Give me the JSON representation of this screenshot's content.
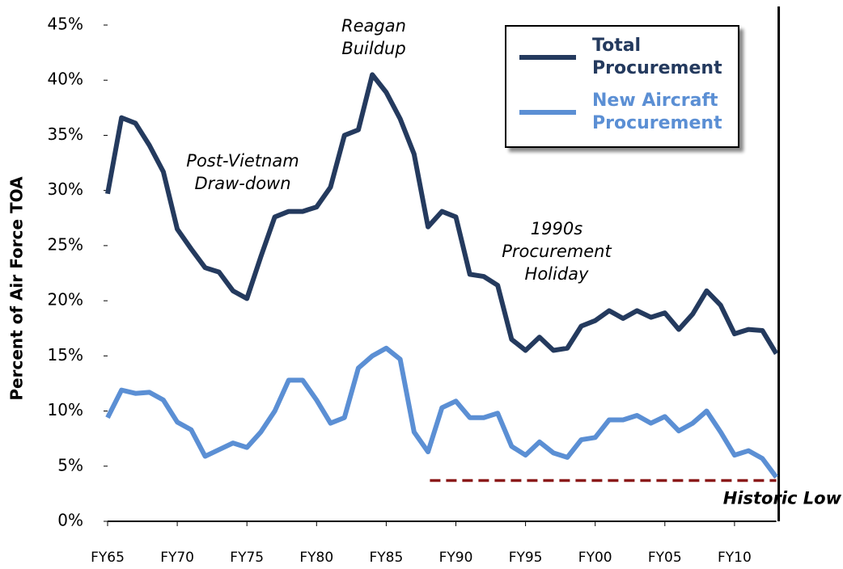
{
  "chart_data": {
    "type": "line",
    "y_label": "Percent of Air Force TOA",
    "categories": [
      "FY65",
      null,
      null,
      null,
      null,
      "FY70",
      null,
      null,
      null,
      null,
      "FY75",
      null,
      null,
      null,
      null,
      "FY80",
      null,
      null,
      null,
      null,
      "FY85",
      null,
      null,
      null,
      null,
      "FY90",
      null,
      null,
      null,
      null,
      "FY95",
      null,
      null,
      null,
      null,
      "FY00",
      null,
      null,
      null,
      null,
      "FY05",
      null,
      null,
      null,
      null,
      "FY10",
      null,
      null,
      null
    ],
    "series": [
      {
        "name": "Total Procurement",
        "color": "#243a5e",
        "values": [
          29.7,
          36.6,
          36.1,
          34.1,
          31.7,
          26.5,
          24.7,
          23.0,
          22.6,
          20.9,
          20.2,
          24.0,
          27.6,
          28.1,
          28.1,
          28.5,
          30.3,
          35.0,
          35.5,
          40.5,
          38.9,
          36.5,
          33.3,
          26.7,
          28.1,
          27.6,
          22.4,
          22.2,
          21.4,
          16.5,
          15.5,
          16.7,
          15.5,
          15.7,
          17.7,
          18.2,
          19.1,
          18.4,
          19.1,
          18.5,
          18.9,
          17.4,
          18.8,
          20.9,
          19.6,
          17.0,
          17.4,
          17.3,
          15.2
        ]
      },
      {
        "name": "New Aircraft Procurement",
        "color": "#5b8fd4",
        "values": [
          9.4,
          11.9,
          11.6,
          11.7,
          11.0,
          9.0,
          8.3,
          5.9,
          6.5,
          7.1,
          6.7,
          8.1,
          10.0,
          12.8,
          12.8,
          11.0,
          8.9,
          9.4,
          13.9,
          15.0,
          15.7,
          14.7,
          8.1,
          6.3,
          10.3,
          10.9,
          9.4,
          9.4,
          9.8,
          6.8,
          6.0,
          7.2,
          6.2,
          5.8,
          7.4,
          7.6,
          9.2,
          9.2,
          9.6,
          8.9,
          9.5,
          8.2,
          8.9,
          10.0,
          8.1,
          6.0,
          6.4,
          5.7,
          4.0
        ]
      }
    ],
    "ylim": [
      0,
      45
    ],
    "yticks": [
      {
        "value": 0,
        "label": "0%"
      },
      {
        "value": 5,
        "label": "5%"
      },
      {
        "value": 10,
        "label": "10%"
      },
      {
        "value": 15,
        "label": "15%"
      },
      {
        "value": 20,
        "label": "20%"
      },
      {
        "value": 25,
        "label": "25%"
      },
      {
        "value": 30,
        "label": "30%"
      },
      {
        "value": 35,
        "label": "35%"
      },
      {
        "value": 40,
        "label": "40%"
      },
      {
        "value": 45,
        "label": "45%"
      }
    ],
    "reference_line": {
      "label": "Historic Low",
      "value": 3.7,
      "color": "#8b1a1a"
    },
    "annotations": [
      {
        "lines": [
          "Reagan",
          "Buildup"
        ]
      },
      {
        "lines": [
          "Post-Vietnam",
          "Draw-down"
        ]
      },
      {
        "lines": [
          "1990s",
          "Procurement",
          "Holiday"
        ]
      }
    ],
    "legend": "top-right"
  }
}
